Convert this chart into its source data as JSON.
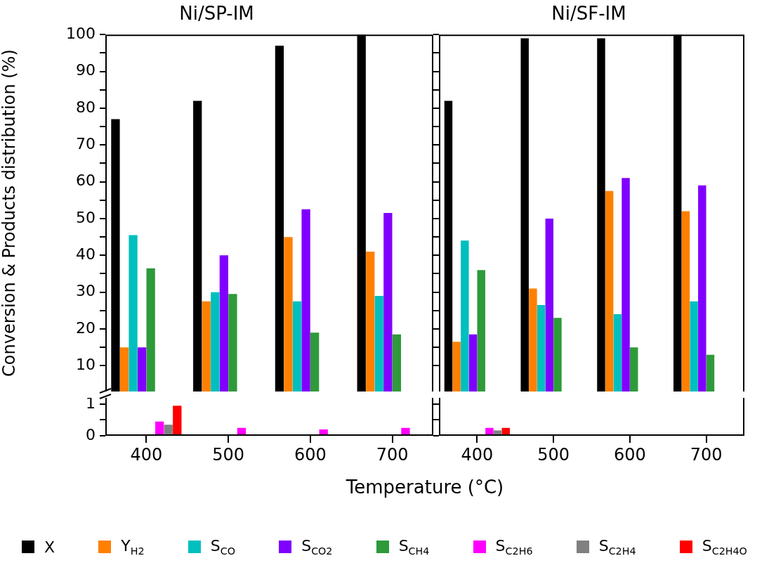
{
  "chart_data": [
    {
      "type": "bar",
      "title": "Ni/SP-IM",
      "ylabel": "Conversion & Products distribution (%)",
      "categories": [
        "400",
        "500",
        "600",
        "700"
      ],
      "ylim": [
        3,
        100
      ],
      "yticks": [
        10,
        {
          "value": 15,
          "label": null
        },
        20,
        {
          "value": 25,
          "label": null
        },
        30,
        {
          "value": 35,
          "label": null
        },
        40,
        {
          "value": 45,
          "label": null
        },
        50,
        {
          "value": 55,
          "label": null
        },
        60,
        {
          "value": 65,
          "label": null
        },
        70,
        {
          "value": 75,
          "label": null
        },
        80,
        {
          "value": 85,
          "label": null
        },
        90,
        {
          "value": 95,
          "label": null
        },
        100
      ],
      "tick_labels": "y",
      "grid": false,
      "legend": "bottom",
      "series": [
        {
          "name": "X",
          "color": "#000000",
          "values": [
            77,
            82,
            97,
            100
          ]
        },
        {
          "name": "Y$_{H2}$",
          "color": "#ff8000",
          "values": [
            15,
            27.5,
            45,
            41
          ]
        },
        {
          "name": "S$_{CO}$",
          "color": "#00bfbf",
          "values": [
            45.5,
            30,
            27.5,
            29
          ]
        },
        {
          "name": "S$_{CO2}$",
          "color": "#8000ff",
          "values": [
            15,
            40,
            52.5,
            51.5
          ]
        },
        {
          "name": "S$_{CH4}$",
          "color": "#2e9a3a",
          "values": [
            36.5,
            29.5,
            19,
            18.5
          ]
        }
      ]
    },
    {
      "type": "bar",
      "title": "Ni/SF-IM",
      "categories": [
        "400",
        "500",
        "600",
        "700"
      ],
      "ylim": [
        3,
        100
      ],
      "yticks": [
        10,
        {
          "value": 15,
          "label": null
        },
        20,
        {
          "value": 25,
          "label": null
        },
        30,
        {
          "value": 35,
          "label": null
        },
        40,
        {
          "value": 45,
          "label": null
        },
        50,
        {
          "value": 55,
          "label": null
        },
        60,
        {
          "value": 65,
          "label": null
        },
        70,
        {
          "value": 75,
          "label": null
        },
        80,
        {
          "value": 85,
          "label": null
        },
        90,
        {
          "value": 95,
          "label": null
        },
        100
      ],
      "tick_labels": false,
      "grid": false,
      "series": [
        {
          "color": "#000000",
          "values": [
            82,
            99,
            99,
            100
          ]
        },
        {
          "color": "#ff8000",
          "values": [
            16.5,
            31,
            57.5,
            52
          ]
        },
        {
          "color": "#00bfbf",
          "values": [
            44,
            26.5,
            24,
            27.5
          ]
        },
        {
          "color": "#8000ff",
          "values": [
            18.5,
            50,
            61,
            59
          ]
        },
        {
          "color": "#2e9a3a",
          "values": [
            36,
            23,
            15,
            13
          ]
        }
      ]
    },
    {
      "type": "bar",
      "xlabel": "Temperature (°C)",
      "categories": [
        "400",
        "500",
        "600",
        "700"
      ],
      "ylim": [
        0,
        1.2
      ],
      "yticks": [
        0,
        {
          "value": 0.5,
          "label": null
        },
        1
      ],
      "grid": false,
      "legend": "bottom",
      "series": [
        {
          "name": "S$_{C2H6}$",
          "color": "#ff00ff",
          "values": [
            0.45,
            0.25,
            0.2,
            0.25
          ]
        },
        {
          "name": "S$_{C2H4}$",
          "color": "#808080",
          "values": [
            0.35,
            null,
            null,
            null
          ]
        },
        {
          "name": "S$_{C2H4O}$",
          "color": "#ff0000",
          "values": [
            0.95,
            null,
            null,
            null
          ]
        }
      ]
    },
    {
      "type": "bar",
      "categories": [
        "400",
        "500",
        "600",
        "700"
      ],
      "ylim": [
        0,
        1.2
      ],
      "yticks": [
        0,
        {
          "value": 0.5,
          "label": null
        },
        1
      ],
      "tick_labels": "x",
      "grid": false,
      "series": [
        {
          "color": "#ff00ff",
          "values": [
            0.25,
            null,
            null,
            null
          ]
        },
        {
          "color": "#808080",
          "values": [
            0.17,
            null,
            null,
            null
          ]
        },
        {
          "color": "#ff0000",
          "values": [
            0.25,
            null,
            null,
            null
          ]
        }
      ]
    }
  ]
}
